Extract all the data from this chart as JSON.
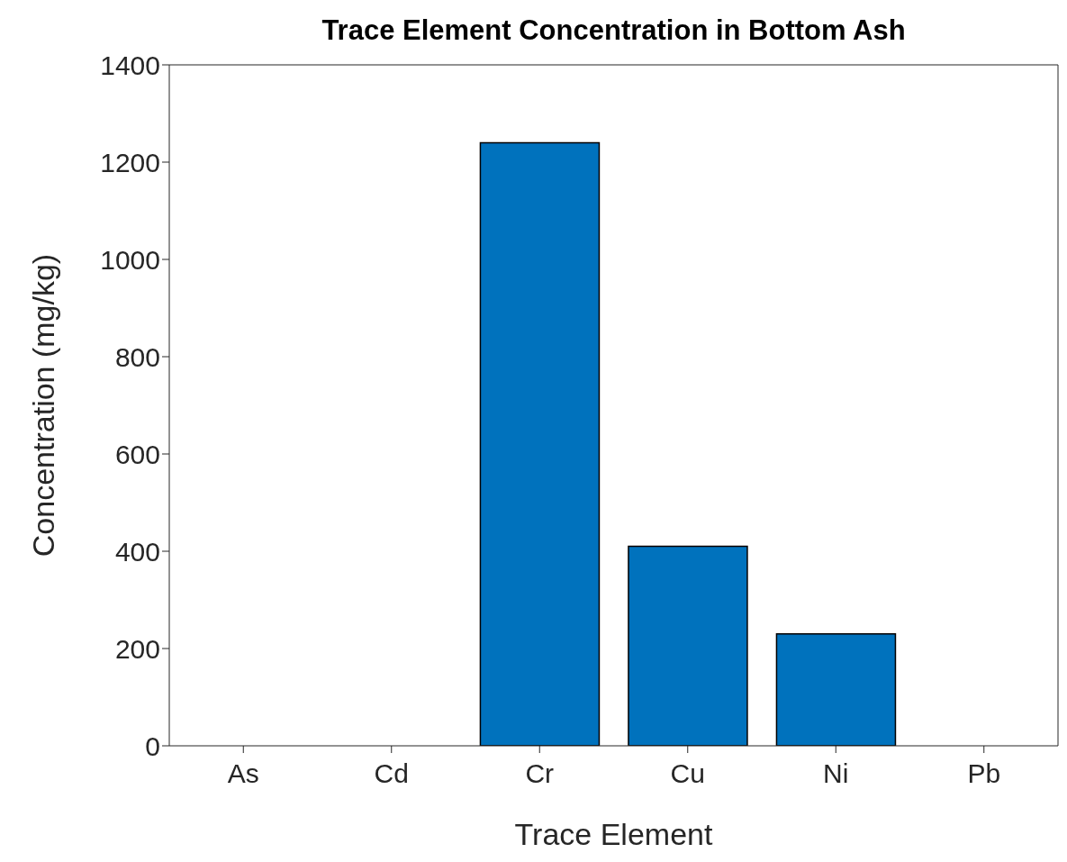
{
  "chart_data": {
    "type": "bar",
    "title": "Trace Element Concentration in Bottom Ash",
    "xlabel": "Trace Element",
    "ylabel": "Concentration (mg/kg)",
    "categories": [
      "As",
      "Cd",
      "Cr",
      "Cu",
      "Ni",
      "Pb"
    ],
    "values": [
      0,
      0,
      1240,
      410,
      230,
      0
    ],
    "color": "#0072bd",
    "ylim": [
      0,
      1400
    ],
    "yticks": [
      0,
      200,
      400,
      600,
      800,
      1000,
      1200,
      1400
    ],
    "grid": false
  }
}
